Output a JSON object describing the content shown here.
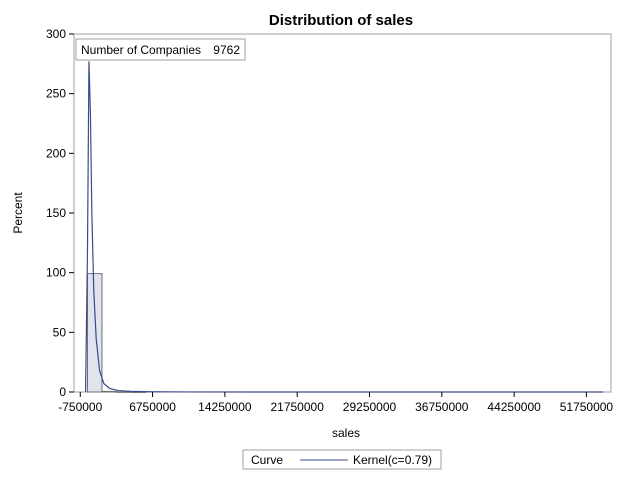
{
  "chart_data": {
    "type": "bar",
    "title": "Distribution of sales",
    "xlabel": "sales",
    "ylabel": "Percent",
    "xlim": [
      -1400000,
      54300000
    ],
    "ylim": [
      0,
      300
    ],
    "x_ticks": [
      -750000,
      6750000,
      14250000,
      21750000,
      29250000,
      36750000,
      44250000,
      51750000
    ],
    "x_tick_labels": [
      "-750000",
      "6750000",
      "14250000",
      "21750000",
      "29250000",
      "36750000",
      "44250000",
      "51750000"
    ],
    "y_ticks": [
      0,
      50,
      100,
      150,
      200,
      250,
      300
    ],
    "y_tick_labels": [
      "0",
      "50",
      "100",
      "150",
      "200",
      "250",
      "300"
    ],
    "bin_width": 1500000,
    "bins": [
      {
        "start": 0,
        "end": 1500000,
        "value": 99.2
      },
      {
        "start": 1500000,
        "end": 3000000,
        "value": 0.5
      },
      {
        "start": 3000000,
        "end": 4500000,
        "value": 0.15
      },
      {
        "start": 4500000,
        "end": 6000000,
        "value": 0.05
      }
    ],
    "curve": {
      "name": "Kernel(c=0.79)",
      "x": [
        -200000,
        0,
        150000,
        300000,
        450000,
        650000,
        900000,
        1250000,
        1700000,
        2300000,
        3200000,
        4500000,
        6500000,
        10000000,
        20000000,
        53500000
      ],
      "y": [
        0,
        120,
        277,
        235,
        150,
        85,
        45,
        18,
        7,
        3,
        1.2,
        0.5,
        0.2,
        0.05,
        0.01,
        0
      ]
    },
    "inset": {
      "label": "Number of Companies",
      "value": "9762"
    },
    "legend": {
      "title": "Curve",
      "entry": "Kernel(c=0.79)",
      "position": "bottom"
    },
    "grid": false,
    "colors": {
      "bar_fill": "#dfe4ef",
      "bar_stroke": "#6f6f6f",
      "curve": "#3c4a8c",
      "frame": "#a0a0a0"
    }
  }
}
